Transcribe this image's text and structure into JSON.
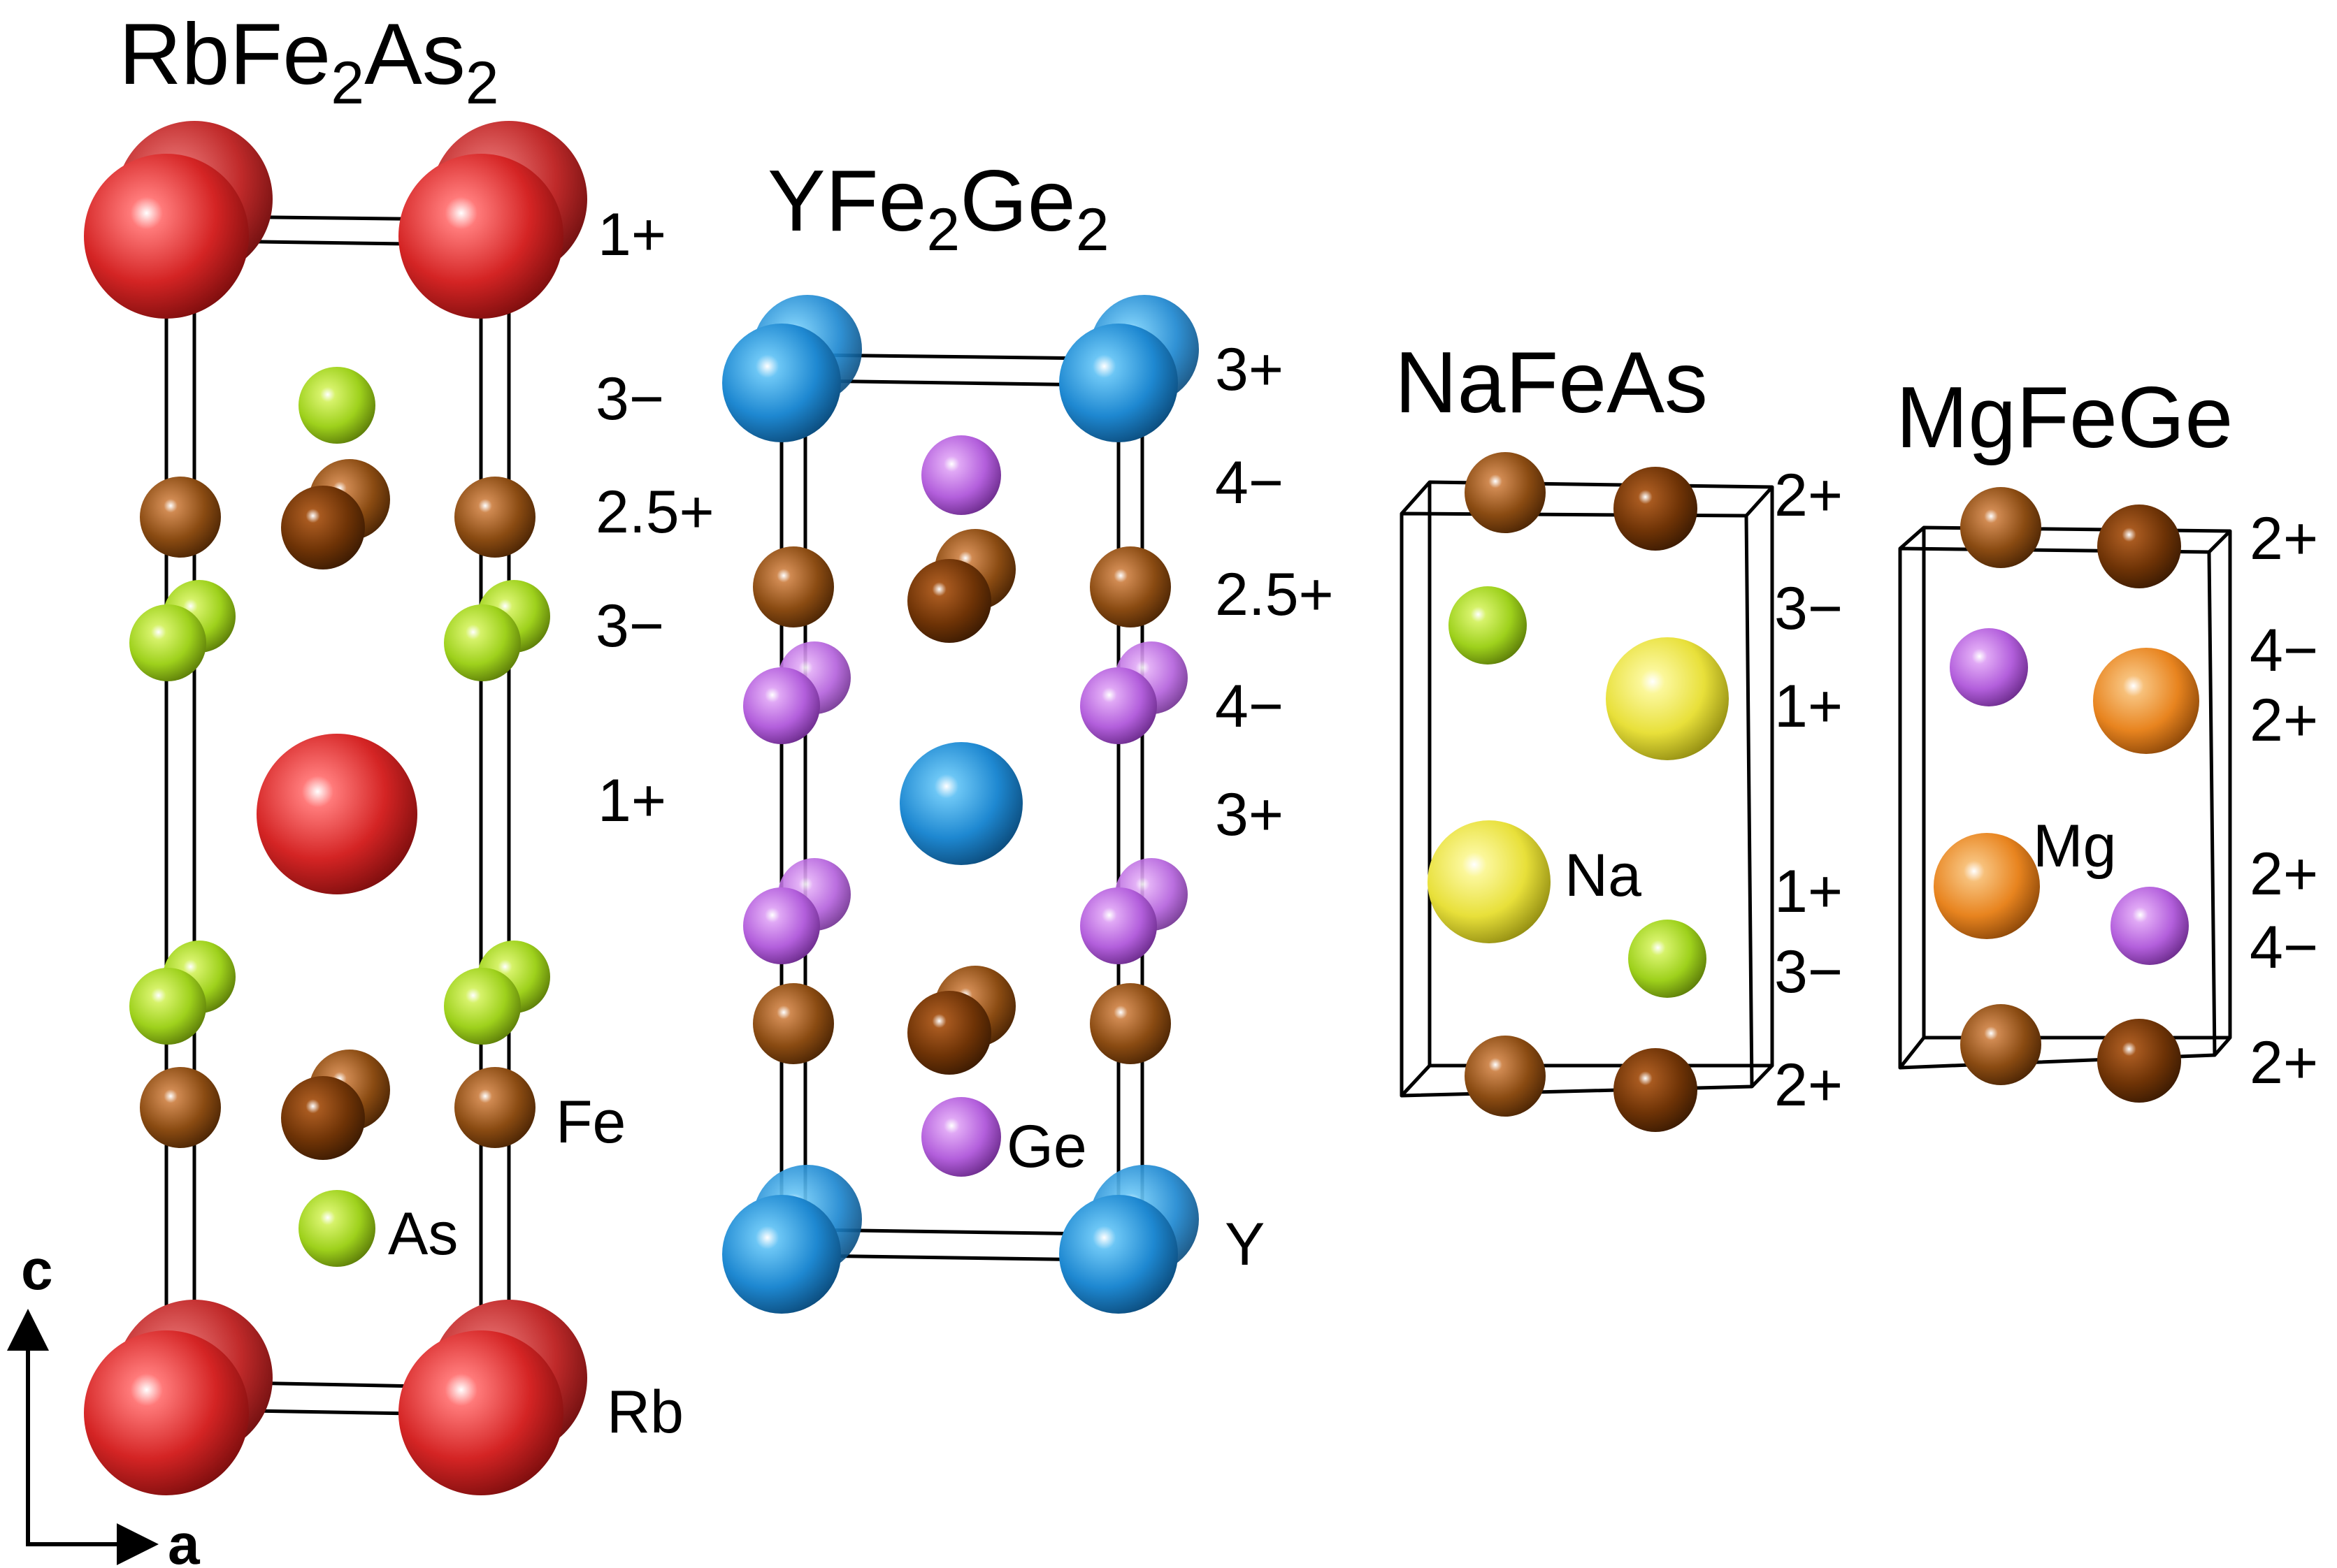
{
  "structures": [
    {
      "id": "rbfe2as2",
      "title": {
        "parts": [
          "RbFe",
          "2",
          "As",
          "2"
        ]
      },
      "labels": [
        "1+",
        "3−",
        "2.5+",
        "3−",
        "1+"
      ],
      "elements": [
        "Fe",
        "As",
        "Rb"
      ]
    },
    {
      "id": "yfe2ge2",
      "title": {
        "parts": [
          "YFe",
          "2",
          "Ge",
          "2"
        ]
      },
      "labels": [
        "3+",
        "4−",
        "2.5+",
        "4−",
        "3+"
      ],
      "elements": [
        "Ge",
        "Y"
      ]
    },
    {
      "id": "nafeas",
      "title": {
        "parts": [
          "NaFeAs"
        ]
      },
      "labels": [
        "2+",
        "3−",
        "1+",
        "1+",
        "3−",
        "2+"
      ],
      "elements": [
        "Na"
      ]
    },
    {
      "id": "mgfege",
      "title": {
        "parts": [
          "MgFeGe"
        ]
      },
      "labels": [
        "2+",
        "4−",
        "2+",
        "2+",
        "4−",
        "2+"
      ],
      "elements": [
        "Mg"
      ]
    }
  ],
  "axes": {
    "vertical": "c",
    "horizontal": "a"
  },
  "colors": {
    "Rb": "#d42424",
    "Fe": "#8a4b12",
    "As": "#9ed11c",
    "Y": "#1e88d1",
    "Ge": "#b35fdc",
    "Na": "#e8e03a",
    "Mg": "#e8841f"
  }
}
